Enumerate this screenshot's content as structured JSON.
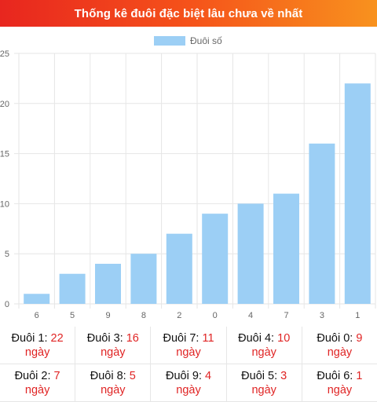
{
  "header": {
    "title": "Thống kê đuôi đặc biệt lâu chưa về nhất"
  },
  "colors": {
    "bar": "#9ccff5",
    "grid": "#e6e6e6",
    "accent": "#e02424"
  },
  "chart_data": {
    "type": "bar",
    "title": "",
    "xlabel": "",
    "ylabel": "",
    "categories": [
      "6",
      "5",
      "9",
      "8",
      "2",
      "0",
      "4",
      "7",
      "3",
      "1"
    ],
    "series": [
      {
        "name": "Đuôi số",
        "values": [
          1,
          3,
          4,
          5,
          7,
          9,
          10,
          11,
          16,
          22
        ]
      }
    ],
    "ylim": [
      0,
      25
    ],
    "yticks": [
      0,
      5,
      10,
      15,
      20,
      25
    ],
    "grid": true,
    "legend": "top-center"
  },
  "stats": {
    "rows": [
      [
        {
          "label": "Đuôi 1:",
          "value": "22",
          "unit": "ngày"
        },
        {
          "label": "Đuôi 3:",
          "value": "16",
          "unit": "ngày"
        },
        {
          "label": "Đuôi 7:",
          "value": "11",
          "unit": "ngày"
        },
        {
          "label": "Đuôi 4:",
          "value": "10",
          "unit": "ngày"
        },
        {
          "label": "Đuôi 0:",
          "value": "9",
          "unit": "ngày"
        }
      ],
      [
        {
          "label": "Đuôi 2:",
          "value": "7",
          "unit": "ngày"
        },
        {
          "label": "Đuôi 8:",
          "value": "5",
          "unit": "ngày"
        },
        {
          "label": "Đuôi 9:",
          "value": "4",
          "unit": "ngày"
        },
        {
          "label": "Đuôi 5:",
          "value": "3",
          "unit": "ngày"
        },
        {
          "label": "Đuôi 6:",
          "value": "1",
          "unit": "ngày"
        }
      ]
    ]
  }
}
